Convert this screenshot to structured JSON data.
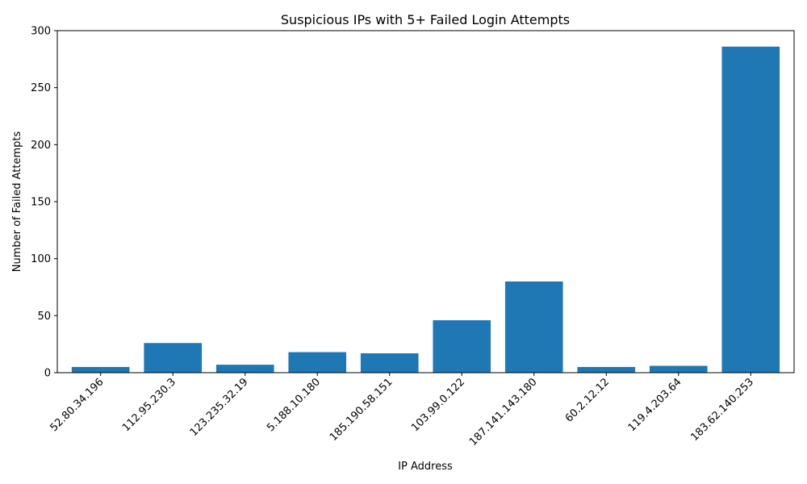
{
  "chart_data": {
    "type": "bar",
    "title": "Suspicious IPs with 5+ Failed Login Attempts",
    "xlabel": "IP Address",
    "ylabel": "Number of Failed Attempts",
    "categories": [
      "52.80.34.196",
      "112.95.230.3",
      "123.235.32.19",
      "5.188.10.180",
      "185.190.58.151",
      "103.99.0.122",
      "187.141.143.180",
      "60.2.12.12",
      "119.4.203.64",
      "183.62.140.253"
    ],
    "values": [
      5,
      26,
      7,
      18,
      17,
      46,
      80,
      5,
      6,
      286
    ],
    "ylim": [
      0,
      300
    ],
    "yticks": [
      0,
      50,
      100,
      150,
      200,
      250,
      300
    ],
    "bar_color": "#1f77b4",
    "grid": false,
    "legend": "none"
  }
}
